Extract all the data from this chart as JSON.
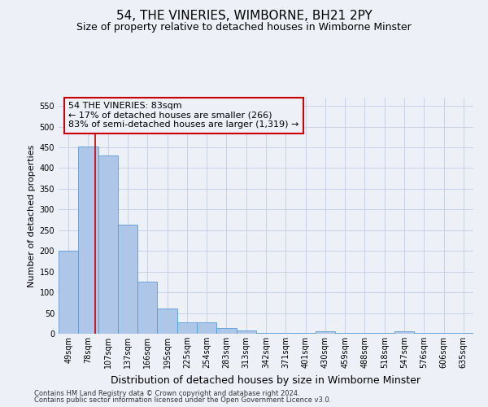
{
  "title": "54, THE VINERIES, WIMBORNE, BH21 2PY",
  "subtitle": "Size of property relative to detached houses in Wimborne Minster",
  "xlabel": "Distribution of detached houses by size in Wimborne Minster",
  "ylabel": "Number of detached properties",
  "footnote1": "Contains HM Land Registry data © Crown copyright and database right 2024.",
  "footnote2": "Contains public sector information licensed under the Open Government Licence v3.0.",
  "categories": [
    "49sqm",
    "78sqm",
    "107sqm",
    "137sqm",
    "166sqm",
    "195sqm",
    "225sqm",
    "254sqm",
    "283sqm",
    "313sqm",
    "342sqm",
    "371sqm",
    "401sqm",
    "430sqm",
    "459sqm",
    "488sqm",
    "518sqm",
    "547sqm",
    "576sqm",
    "606sqm",
    "635sqm"
  ],
  "values": [
    200,
    452,
    430,
    263,
    126,
    61,
    28,
    28,
    13,
    7,
    1,
    1,
    1,
    6,
    1,
    1,
    1,
    5,
    1,
    1,
    1
  ],
  "bar_color": "#aec6e8",
  "bar_edge_color": "#5b9bd5",
  "grid_color": "#c8d0e8",
  "vline_color": "#cc0000",
  "vline_x": 1.35,
  "annotation_text": "54 THE VINERIES: 83sqm\n← 17% of detached houses are smaller (266)\n83% of semi-detached houses are larger (1,319) →",
  "annotation_box_color": "#cc0000",
  "ylim": [
    0,
    570
  ],
  "yticks": [
    0,
    50,
    100,
    150,
    200,
    250,
    300,
    350,
    400,
    450,
    500,
    550
  ],
  "title_fontsize": 11,
  "subtitle_fontsize": 9,
  "annotation_fontsize": 8,
  "xlabel_fontsize": 9,
  "ylabel_fontsize": 8,
  "tick_fontsize": 7,
  "bg_color": "#eef0f8"
}
